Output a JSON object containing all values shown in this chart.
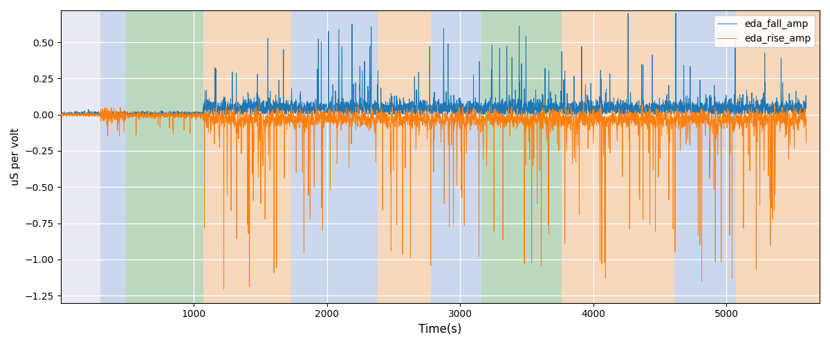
{
  "xlabel": "Time(s)",
  "ylabel": "uS per volt",
  "legend_labels": [
    "eda_fall_amp",
    "eda_rise_amp"
  ],
  "fall_color": "#1f77b4",
  "rise_color": "#ff7f0e",
  "ylim": [
    -1.3,
    0.72
  ],
  "xlim": [
    0,
    5700
  ],
  "background_regions": [
    {
      "xmin": 300,
      "xmax": 490,
      "color": "#aec6e8",
      "alpha": 0.5
    },
    {
      "xmin": 490,
      "xmax": 1070,
      "color": "#90c990",
      "alpha": 0.5
    },
    {
      "xmin": 1070,
      "xmax": 1730,
      "color": "#ffcc99",
      "alpha": 0.6
    },
    {
      "xmin": 1730,
      "xmax": 2380,
      "color": "#aec6e8",
      "alpha": 0.5
    },
    {
      "xmin": 2380,
      "xmax": 2780,
      "color": "#ffcc99",
      "alpha": 0.6
    },
    {
      "xmin": 2780,
      "xmax": 3160,
      "color": "#aec6e8",
      "alpha": 0.5
    },
    {
      "xmin": 3160,
      "xmax": 3760,
      "color": "#90c990",
      "alpha": 0.5
    },
    {
      "xmin": 3760,
      "xmax": 4610,
      "color": "#ffcc99",
      "alpha": 0.6
    },
    {
      "xmin": 4610,
      "xmax": 5070,
      "color": "#aec6e8",
      "alpha": 0.5
    },
    {
      "xmin": 5070,
      "xmax": 5700,
      "color": "#ffcc99",
      "alpha": 0.6
    }
  ],
  "xticks": [
    1000,
    2000,
    3000,
    4000,
    5000
  ],
  "yticks": [
    -1.25,
    -1.0,
    -0.75,
    -0.5,
    -0.25,
    0.0,
    0.25,
    0.5
  ],
  "seed": 42,
  "n_points": 5600
}
